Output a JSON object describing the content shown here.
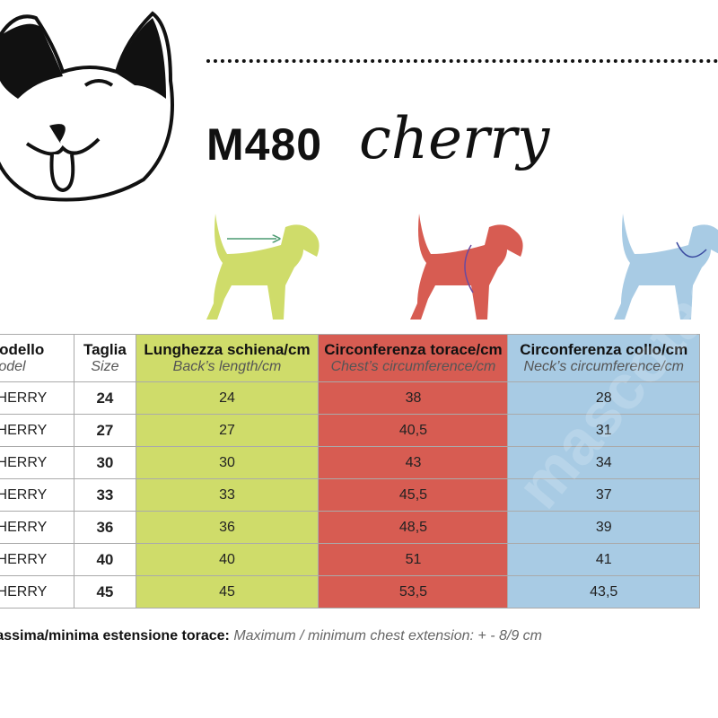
{
  "header": {
    "model": "M480",
    "name": "cherry"
  },
  "colors": {
    "back": "#cfdc6a",
    "chest": "#d75c52",
    "neck": "#a8cbe4"
  },
  "icons": [
    "dog-face-logo",
    "dog-back-length-icon",
    "dog-chest-icon",
    "dog-neck-icon"
  ],
  "table": {
    "columns": [
      {
        "label": "Modello",
        "sub": "Model"
      },
      {
        "label": "Taglia",
        "sub": "Size"
      },
      {
        "label": "Lunghezza schiena/cm",
        "sub": "Back’s length/cm"
      },
      {
        "label": "Circonferenza torace/cm",
        "sub": "Chest’s circumference/cm"
      },
      {
        "label": "Circonferenza collo/cm",
        "sub": "Neck’s circumference/cm"
      }
    ],
    "rows": [
      [
        "CHERRY",
        "24",
        "24",
        "38",
        "28"
      ],
      [
        "CHERRY",
        "27",
        "27",
        "40,5",
        "31"
      ],
      [
        "CHERRY",
        "30",
        "30",
        "43",
        "34"
      ],
      [
        "CHERRY",
        "33",
        "33",
        "45,5",
        "37"
      ],
      [
        "CHERRY",
        "36",
        "36",
        "48,5",
        "39"
      ],
      [
        "CHERRY",
        "40",
        "40",
        "51",
        "41"
      ],
      [
        "CHERRY",
        "45",
        "45",
        "53,5",
        "43,5"
      ]
    ]
  },
  "note": {
    "label": "Massima/minima estensione torace:",
    "text": "Maximum / minimum chest extension: + - 8/9 cm"
  },
  "watermark": "mascotas"
}
